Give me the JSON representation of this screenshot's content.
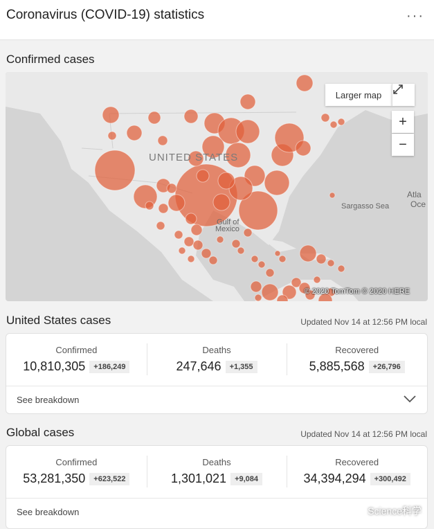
{
  "header": {
    "title": "Coronavirus (COVID-19) statistics",
    "more_label": "···"
  },
  "map_section": {
    "title": "Confirmed cases",
    "larger_map_label": "Larger map",
    "zoom_in_label": "+",
    "zoom_out_label": "−",
    "attribution": "© 2020 TomTom © 2020 HERE",
    "labels": {
      "country": "UNITED STATES",
      "sea": "Sargasso Sea",
      "gulf_1": "Gulf of",
      "gulf_2": "Mexico",
      "ocean_1": "Atla",
      "ocean_2": "Oce"
    },
    "colors": {
      "bubble": "#e0603a",
      "land": "#e9e9e9",
      "water": "#d3d3d3"
    }
  },
  "us": {
    "title": "United States cases",
    "updated": "Updated Nov 14 at 12:56 PM local",
    "stats": [
      {
        "label": "Confirmed",
        "value": "10,810,305",
        "delta": "+186,249"
      },
      {
        "label": "Deaths",
        "value": "247,646",
        "delta": "+1,355"
      },
      {
        "label": "Recovered",
        "value": "5,885,568",
        "delta": "+26,796"
      }
    ],
    "breakdown_label": "See breakdown"
  },
  "global": {
    "title": "Global cases",
    "updated": "Updated Nov 14 at 12:56 PM local",
    "stats": [
      {
        "label": "Confirmed",
        "value": "53,281,350",
        "delta": "+623,522"
      },
      {
        "label": "Deaths",
        "value": "1,301,021",
        "delta": "+9,084"
      },
      {
        "label": "Recovered",
        "value": "34,394,294",
        "delta": "+300,492"
      }
    ],
    "breakdown_label": "See breakdown"
  },
  "watermark": {
    "text": "Science科学"
  }
}
